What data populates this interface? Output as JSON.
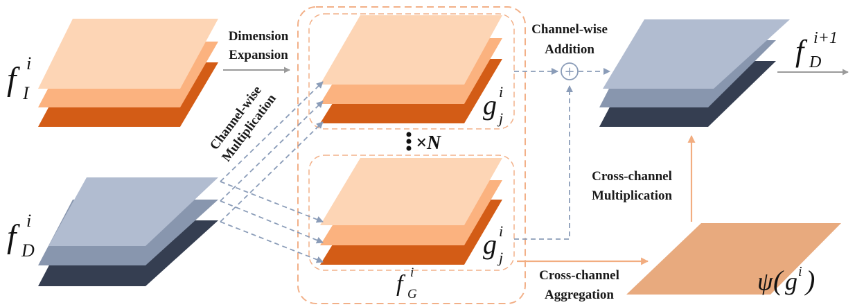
{
  "colors": {
    "orange_light": "#fdd5b5",
    "orange_mid": "#fbb27f",
    "orange_dark": "#d35c16",
    "blue_light": "#b1bcd0",
    "blue_mid": "#8896ae",
    "blue_dark": "#353e51",
    "psi_fill": "#e8aa7e",
    "dash_orange": "#f2b088",
    "dash_blue": "#8a9cb8",
    "arrow_gray": "#9a9a9a",
    "arrow_orange": "#f2ad80"
  },
  "labels": {
    "dim_line1": "Dimension",
    "dim_line2": "Expansion",
    "cw_add_line1": "Channel-wise",
    "cw_add_line2": "Addition",
    "cw_mult_line1": "Channel-wise",
    "cw_mult_line2": "Multiplication",
    "cc_mult_line1": "Cross-channel",
    "cc_mult_line2": "Multiplication",
    "cc_agg_line1": "Cross-channel",
    "cc_agg_line2": "Aggregation",
    "times_n": "×N",
    "plus_sign": "+"
  },
  "math": {
    "fI": {
      "base": "f",
      "sup": "i",
      "sub": "I"
    },
    "fD": {
      "base": "f",
      "sup": "i",
      "sub": "D"
    },
    "fG": {
      "base": "f",
      "sup": "i",
      "sub": "G"
    },
    "gj_top": {
      "base": "g",
      "sup": "i",
      "sub": "j"
    },
    "gj_bottom": {
      "base": "g",
      "sup": "i",
      "sub": "j"
    },
    "fD_next": {
      "base": "f",
      "sup": "i+1",
      "sub": "D"
    },
    "psi": {
      "func": "ψ",
      "lparen": "(",
      "arg": "g",
      "arg_sup": "i",
      "rparen": ")"
    }
  }
}
